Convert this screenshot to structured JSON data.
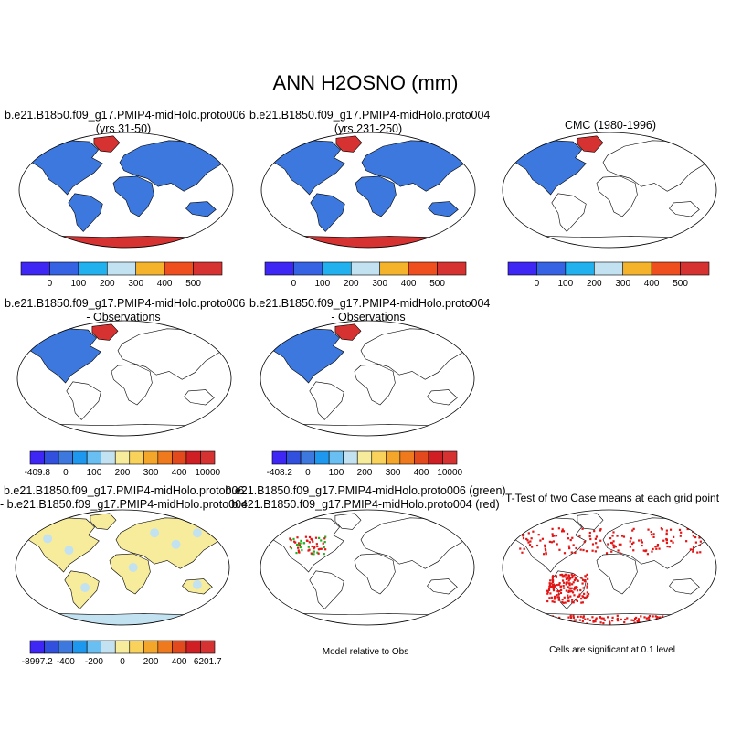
{
  "title": "ANN H2OSNO (mm)",
  "colors": {
    "ocean": "#ffffff",
    "snow_blue": "#3d78de",
    "antarctic_red": "#d63232",
    "diff_yellow": "#f7ec9b",
    "diff_lightblue": "#c2e2f2",
    "sig_red": "#e31515",
    "sig_green": "#22b322"
  },
  "chart_data": [
    {
      "type": "heatmap",
      "title_line1": "b.e21.B1850.f09_g17.PMIP4-midHolo.proto006",
      "title_line2": "(yrs 31-50)",
      "colorbar_ticks": [
        "0",
        "100",
        "200",
        "300",
        "400",
        "500"
      ],
      "colorbar_colors": [
        "#3e26f5",
        "#3563e4",
        "#20b1ee",
        "#c2e2f2",
        "#f4b32a",
        "#ef4f1e",
        "#d63232"
      ]
    },
    {
      "type": "heatmap",
      "title_line1": "b.e21.B1850.f09_g17.PMIP4-midHolo.proto004",
      "title_line2": "(yrs 231-250)",
      "colorbar_ticks": [
        "0",
        "100",
        "200",
        "300",
        "400",
        "500"
      ],
      "colorbar_colors": [
        "#3e26f5",
        "#3563e4",
        "#20b1ee",
        "#c2e2f2",
        "#f4b32a",
        "#ef4f1e",
        "#d63232"
      ]
    },
    {
      "type": "heatmap",
      "title_line1": "CMC (1980-1996)",
      "title_line2": "",
      "colorbar_ticks": [
        "0",
        "100",
        "200",
        "300",
        "400",
        "500"
      ],
      "colorbar_colors": [
        "#3e26f5",
        "#3563e4",
        "#20b1ee",
        "#c2e2f2",
        "#f4b32a",
        "#ef4f1e",
        "#d63232"
      ]
    },
    {
      "type": "heatmap",
      "title_line1": "b.e21.B1850.f09_g17.PMIP4-midHolo.proto006",
      "title_line2": "- Observations",
      "colorbar_ticks": [
        "-409.8",
        "0",
        "100",
        "200",
        "300",
        "400",
        "10000"
      ],
      "colorbar_colors": [
        "#3e26f5",
        "#3150de",
        "#3d78de",
        "#1e98ee",
        "#69bff2",
        "#c2e2f2",
        "#f7ec9b",
        "#f9d25c",
        "#f4a62a",
        "#ef7a1e",
        "#e24a1e",
        "#cf1f24",
        "#d63232"
      ]
    },
    {
      "type": "heatmap",
      "title_line1": "b.e21.B1850.f09_g17.PMIP4-midHolo.proto004",
      "title_line2": "- Observations",
      "colorbar_ticks": [
        "-408.2",
        "0",
        "100",
        "200",
        "300",
        "400",
        "10000"
      ],
      "colorbar_colors": [
        "#3e26f5",
        "#3150de",
        "#3d78de",
        "#1e98ee",
        "#69bff2",
        "#c2e2f2",
        "#f7ec9b",
        "#f9d25c",
        "#f4a62a",
        "#ef7a1e",
        "#e24a1e",
        "#cf1f24",
        "#d63232"
      ]
    },
    {
      "type": "heatmap",
      "title_line1": "b.e21.B1850.f09_g17.PMIP4-midHolo.proto006",
      "title_line2": "- b.e21.B1850.f09_g17.PMIP4-midHolo.proto004",
      "colorbar_ticks": [
        "-8997.2",
        "-400",
        "-200",
        "0",
        "200",
        "400",
        "6201.7"
      ],
      "colorbar_colors": [
        "#3e26f5",
        "#3150de",
        "#3d78de",
        "#1e98ee",
        "#69bff2",
        "#c2e2f2",
        "#f7ec9b",
        "#f9d25c",
        "#f4a62a",
        "#ef7a1e",
        "#e24a1e",
        "#cf1f24",
        "#d63232"
      ]
    },
    {
      "type": "heatmap",
      "title_line1": "b.e21.B1850.f09_g17.PMIP4-midHolo.proto006 (green)",
      "title_line2": "b.e21.B1850.f09_g17.PMIP4-midHolo.proto004 (red)",
      "note": "Model relative to Obs"
    },
    {
      "type": "heatmap",
      "title_line1": "T-Test of two Case means at each grid point",
      "title_line2": "",
      "note": "Cells are significant at 0.1 level"
    }
  ]
}
